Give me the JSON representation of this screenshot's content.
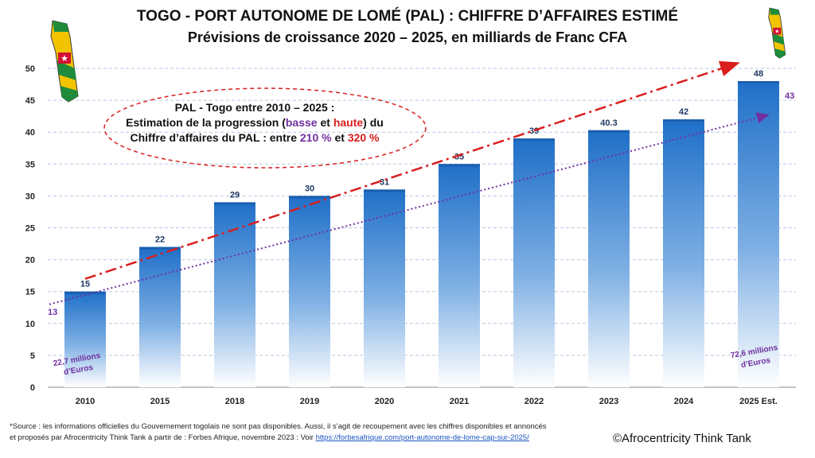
{
  "title": "TOGO - PORT AUTONOME DE LOMÉ (PAL) : CHIFFRE D’AFFAIRES ESTIMÉ",
  "subtitle": "Prévisions de croissance 2020 – 2025, en milliards de Franc CFA",
  "annotation": {
    "line1": "PAL - Togo entre 2010 – 2025 :",
    "line2_a": "Estimation de la progression (",
    "line2_basse": "basse",
    "line2_b": " et ",
    "line2_haute": "haute",
    "line2_c": ") du",
    "line3_a": "Chiffre d’affaires du PAL : entre ",
    "line3_low": "210 %",
    "line3_b": " et ",
    "line3_high": "320 %"
  },
  "note_left_1": "22,7 millions",
  "note_left_2": "d’Euros",
  "note_right_1": "72,6 millions",
  "note_right_2": "d’Euros",
  "footer": {
    "line1": "*Source : les informations officielles du Gouvernement togolais ne sont pas disponibles. Aussi, il s’agit de recoupement avec les chiffres disponibles et annoncés",
    "line2_prefix": "et proposés par Afrocentricity Think Tank à partir de : Forbes Afrique, novembre 2023 : Voir ",
    "link": "https://forbesafrique.com/port-autonome-de-lome-cap-sur-2025/"
  },
  "copyright": "©Afrocentricity Think Tank",
  "colors": {
    "bar_top": "#1f6fc8",
    "bar_bottom": "#ffffff",
    "trend_high": "#d91e1e",
    "trend_low": "#7030a0",
    "label": "#1f3864"
  },
  "chart_data": {
    "type": "bar",
    "categories": [
      "2010",
      "2015",
      "2018",
      "2019",
      "2020",
      "2021",
      "2022",
      "2023",
      "2024",
      "2025 Est."
    ],
    "values": [
      15,
      22,
      29,
      30,
      31,
      35,
      39,
      40.3,
      42,
      48
    ],
    "value_labels": [
      "15",
      "22",
      "29",
      "30",
      "31",
      "35",
      "39",
      "40.3",
      "42",
      "48"
    ],
    "ylim": [
      0,
      50
    ],
    "yticks": [
      "0",
      "5",
      "10",
      "15",
      "20",
      "25",
      "30",
      "35",
      "40",
      "45",
      "50"
    ],
    "grid": true,
    "trend_low": {
      "start": 13,
      "end": 43,
      "start_label": "13",
      "end_label": "43"
    }
  }
}
